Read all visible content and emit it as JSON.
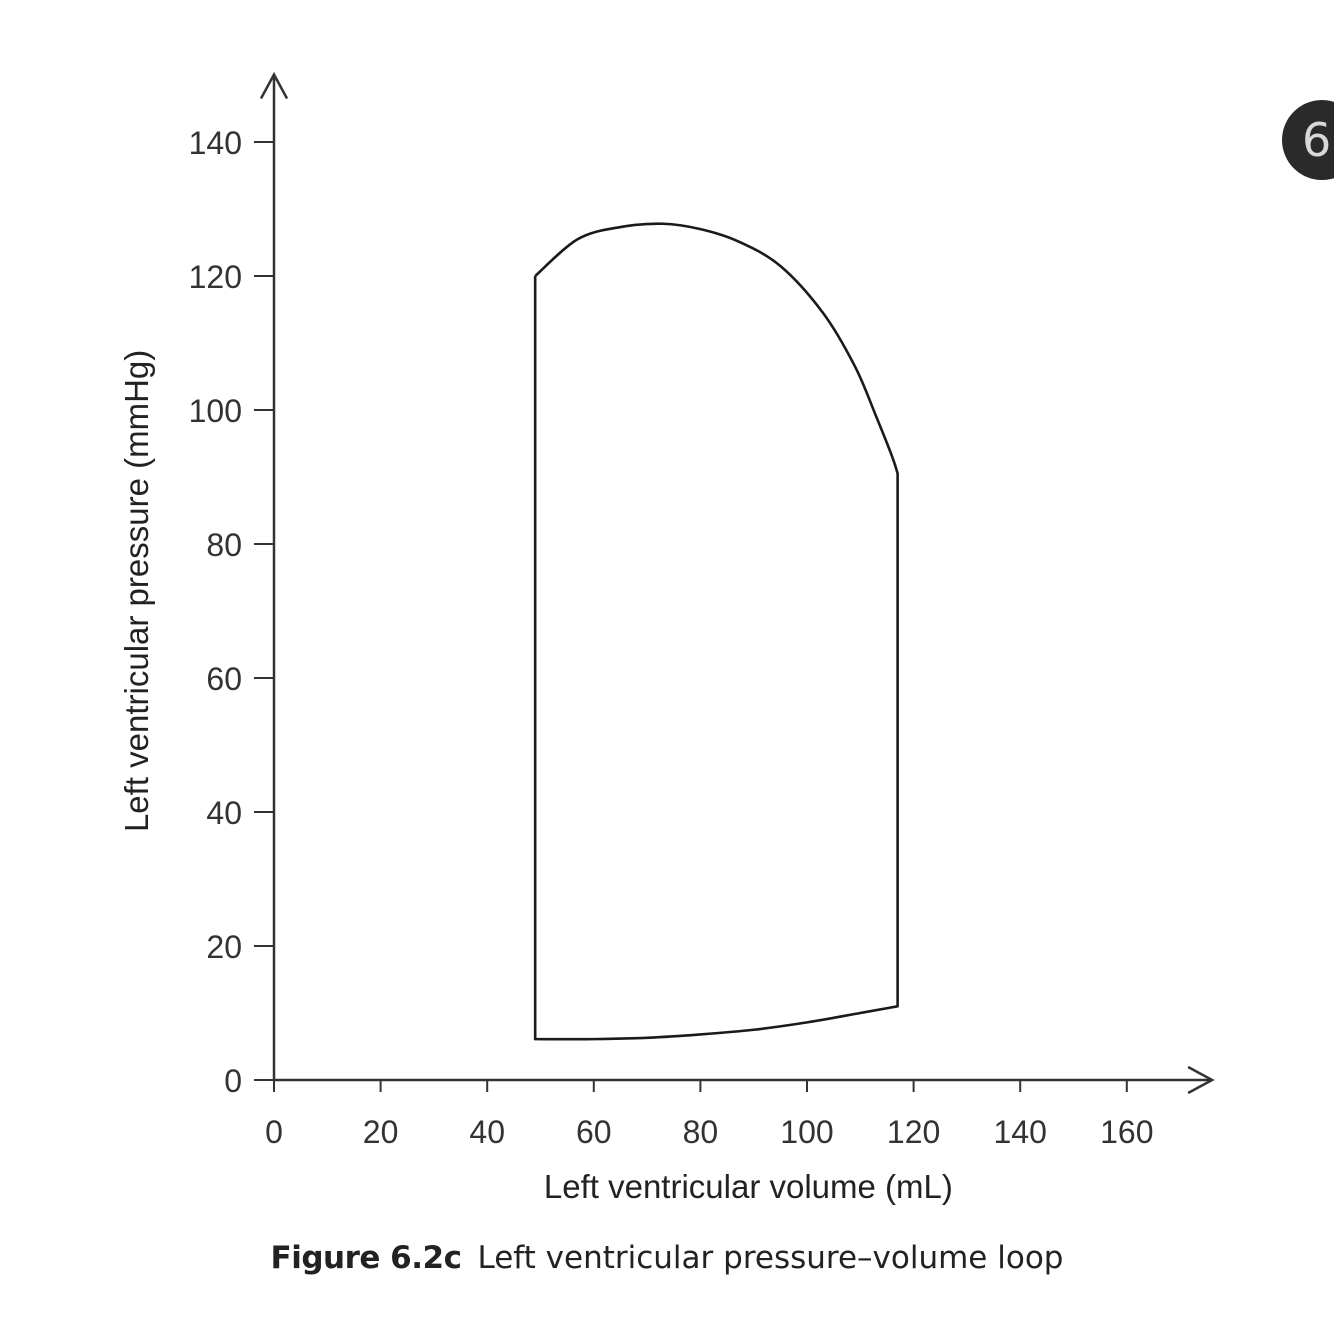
{
  "chart_data": {
    "type": "line",
    "xlabel": "Left ventricular volume (mL)",
    "ylabel": "Left ventricular pressure (mmHg)",
    "xlim": [
      0,
      170
    ],
    "ylim": [
      0,
      145
    ],
    "xticks": [
      0,
      20,
      40,
      60,
      80,
      100,
      120,
      140,
      160
    ],
    "yticks": [
      0,
      20,
      40,
      60,
      80,
      100,
      120,
      140
    ],
    "grid": false,
    "series": [
      {
        "x": [
          49,
          57,
          65,
          73,
          80,
          87,
          95,
          103,
          109,
          113,
          116,
          117,
          117,
          110,
          100,
          90,
          80,
          70,
          60,
          49,
          49
        ],
        "y": [
          120,
          125.5,
          127.3,
          127.8,
          127,
          125.2,
          121.5,
          114.5,
          106.5,
          99,
          93,
          90.5,
          11,
          10,
          8.6,
          7.5,
          6.8,
          6.3,
          6.1,
          6.1,
          120
        ]
      }
    ],
    "line_color": "#1a1a1a"
  },
  "caption": {
    "label": "Figure 6.2c",
    "text": "Left ventricular pressure–volume loop"
  },
  "chapter_badge": "6"
}
